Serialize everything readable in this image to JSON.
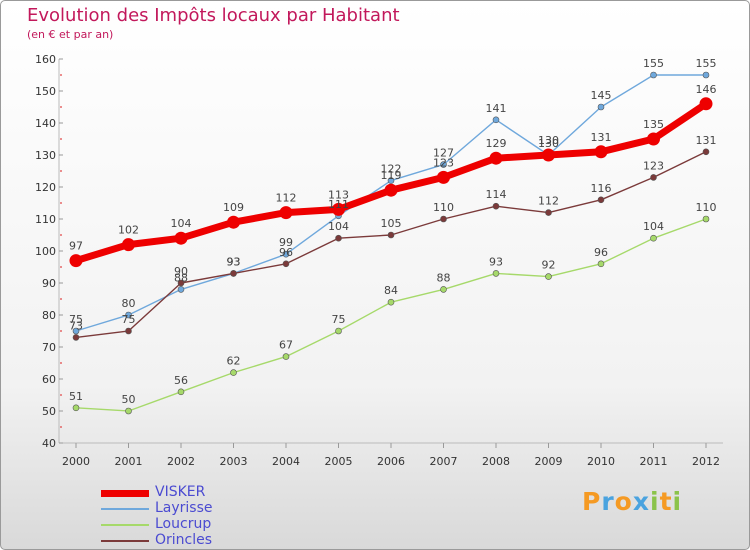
{
  "header": {
    "title": "Evolution des Impôts locaux par Habitant",
    "subtitle": "(en € et par an)"
  },
  "logo": {
    "letters": [
      "P",
      "r",
      "o",
      "x",
      "i",
      "t",
      "i"
    ],
    "letter_colors": [
      "#f59a23",
      "#4aa3df",
      "#f59a23",
      "#4aa3df",
      "#8bc34a",
      "#f59a23",
      "#8bc34a"
    ]
  },
  "chart_data": {
    "type": "line",
    "title": "Evolution des Impôts locaux par Habitant",
    "subtitle": "(en € et par an)",
    "xlabel": "",
    "ylabel": "",
    "x": [
      "2000",
      "2001",
      "2002",
      "2003",
      "2004",
      "2005",
      "2006",
      "2007",
      "2008",
      "2009",
      "2010",
      "2011",
      "2012"
    ],
    "ylim": [
      40,
      160
    ],
    "yticks": [
      40,
      50,
      60,
      70,
      80,
      90,
      100,
      110,
      120,
      130,
      140,
      150,
      160
    ],
    "grid": false,
    "legend_position": "bottom-left",
    "series": [
      {
        "name": "VISKER",
        "values": [
          97,
          102,
          104,
          109,
          112,
          113,
          119,
          123,
          129,
          130,
          131,
          135,
          146
        ],
        "color": "#ee0000",
        "emphasis": true
      },
      {
        "name": "Layrisse",
        "values": [
          75,
          80,
          88,
          93,
          99,
          111,
          122,
          127,
          141,
          130,
          145,
          155,
          155
        ],
        "color": "#6fa8dc",
        "emphasis": false
      },
      {
        "name": "Loucrup",
        "values": [
          51,
          50,
          56,
          62,
          67,
          75,
          84,
          88,
          93,
          92,
          96,
          104,
          110
        ],
        "color": "#a6d96a",
        "emphasis": false
      },
      {
        "name": "Orincles",
        "values": [
          73,
          75,
          90,
          93,
          96,
          104,
          105,
          110,
          114,
          112,
          116,
          123,
          131
        ],
        "color": "#7b3a3a",
        "emphasis": false
      }
    ]
  }
}
